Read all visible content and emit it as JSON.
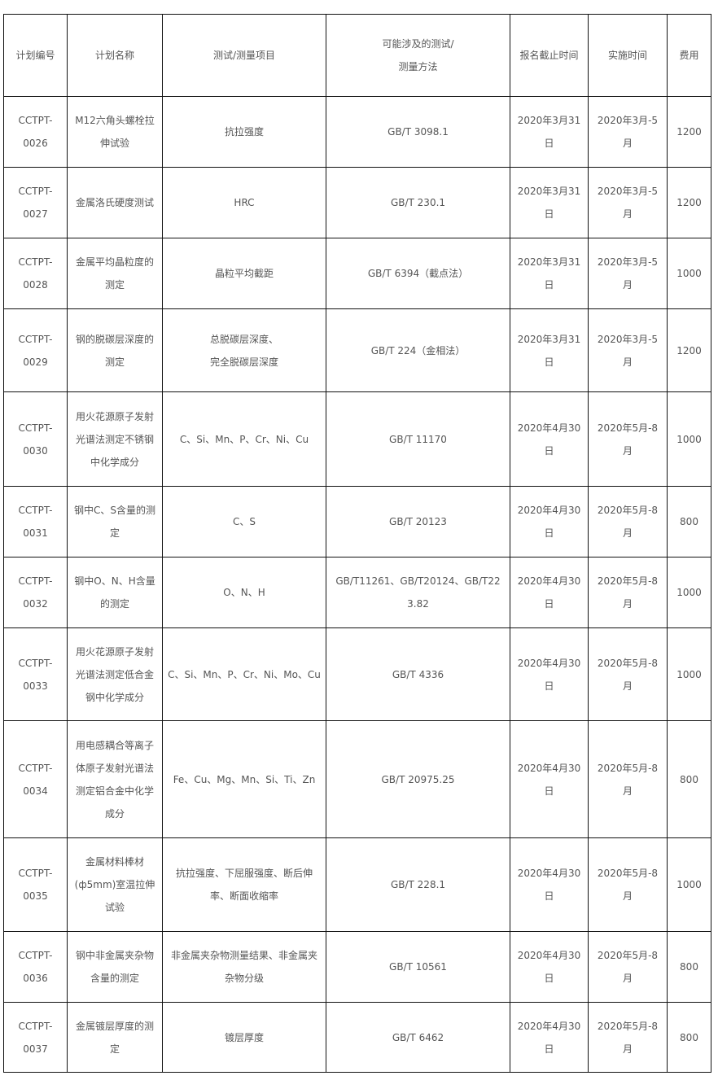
{
  "table": {
    "headers": [
      "计划编号",
      "计划名称",
      "测试/测量项目",
      "可能涉及的测试/\n测量方法",
      "报名截止时间",
      "实施时间",
      "费用"
    ],
    "rows": [
      [
        "CCTPT-\n0026",
        "M12六角头螺栓拉\n伸试验",
        "抗拉强度",
        "GB/T 3098.1",
        "2020年3月31日",
        "2020年3月-5月",
        "1200"
      ],
      [
        "CCTPT-\n0027",
        "金属洛氏硬度测试",
        "HRC",
        "GB/T 230.1",
        "2020年3月31日",
        "2020年3月-5月",
        "1200"
      ],
      [
        "CCTPT-\n0028",
        "金属平均晶粒度的\n测定",
        "晶粒平均截距",
        "GB/T 6394（截点法）",
        "2020年3月31日",
        "2020年3月-5月",
        "1000"
      ],
      [
        "CCTPT-\n0029",
        "钢的脱碳层深度的\n测定",
        "总脱碳层深度、\n完全脱碳层深度",
        "GB/T 224（金相法）",
        "2020年3月31日",
        "2020年3月-5月",
        "1200"
      ],
      [
        "CCTPT-\n0030",
        "用火花源原子发射\n光谱法测定不锈钢\n中化学成分",
        "C、Si、Mn、P、Cr、Ni、Cu",
        "GB/T 11170",
        "2020年4月30日",
        "2020年5月-8月",
        "1000"
      ],
      [
        "CCTPT-\n0031",
        "钢中C、S含量的测\n定",
        "C、S",
        "GB/T 20123",
        "2020年4月30日",
        "2020年5月-8月",
        "800"
      ],
      [
        "CCTPT-\n0032",
        "钢中O、N、H含量\n的测定",
        "O、N、H",
        "GB/T11261、GB/T20124、GB/T223.82",
        "2020年4月30日",
        "2020年5月-8月",
        "1000"
      ],
      [
        "CCTPT-\n0033",
        "用火花源原子发射\n光谱法测定低合金\n钢中化学成分",
        "C、Si、Mn、P、Cr、Ni、Mo、Cu",
        "GB/T 4336",
        "2020年4月30日",
        "2020年5月-8月",
        "1000"
      ],
      [
        "CCTPT-\n0034",
        "用电感耦合等离子\n体原子发射光谱法\n测定铝合金中化学\n成分",
        "Fe、Cu、Mg、Mn、Si、Ti、Zn",
        "GB/T 20975.25",
        "2020年4月30日",
        "2020年5月-8月",
        "800"
      ],
      [
        "CCTPT-\n0035",
        "金属材料棒材\n(ф5mm)室温拉伸\n试验",
        "抗拉强度、下屈服强度、断后伸\n率、断面收缩率",
        "GB/T 228.1",
        "2020年4月30日",
        "2020年5月-8月",
        "1000"
      ],
      [
        "CCTPT-\n0036",
        "钢中非金属夹杂物\n含量的测定",
        "非金属夹杂物测量结果、非金属夹\n杂物分级",
        "GB/T 10561",
        "2020年4月30日",
        "2020年5月-8月",
        "800"
      ],
      [
        "CCTPT-\n0037",
        "金属镀层厚度的测\n定",
        "镀层厚度",
        "GB/T 6462",
        "2020年4月30日",
        "2020年5月-8月",
        "800"
      ]
    ]
  }
}
